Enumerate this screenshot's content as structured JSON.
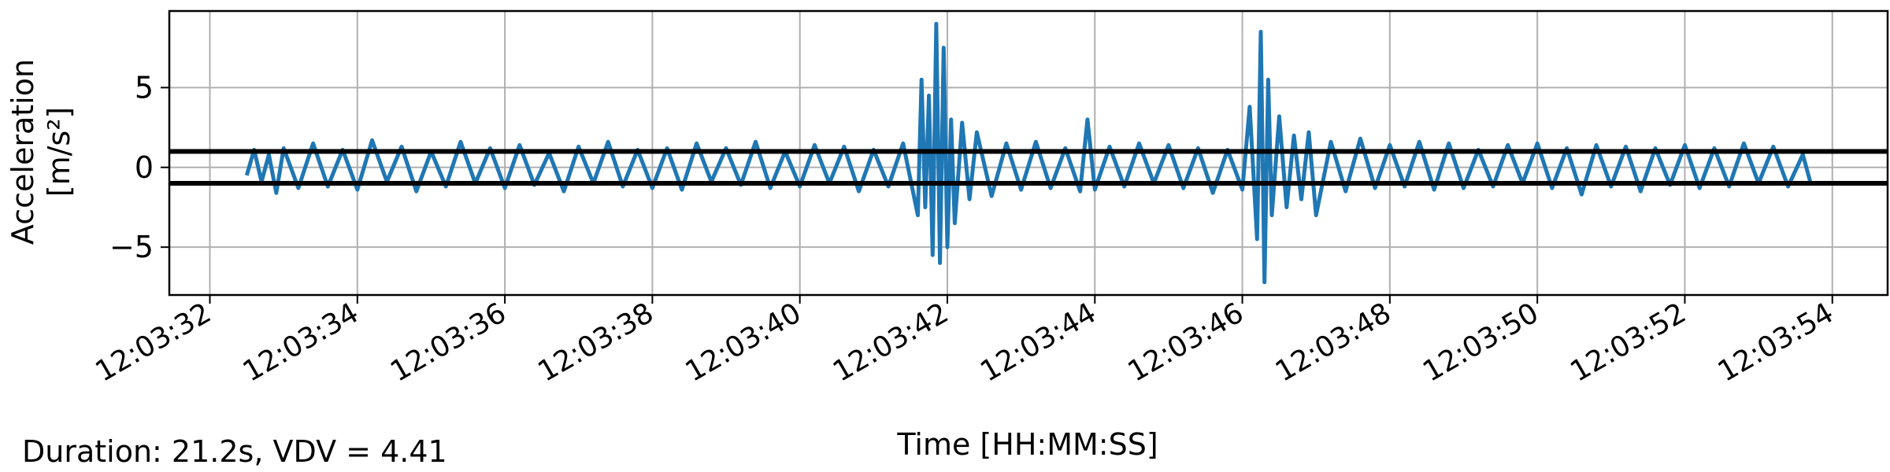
{
  "chart_data": {
    "type": "line",
    "xlabel": "Time [HH:MM:SS]",
    "ylabel_line1": "Acceleration",
    "ylabel_line2": "[m/s²]",
    "x_tick_labels": [
      "12:03:32",
      "12:03:34",
      "12:03:36",
      "12:03:38",
      "12:03:40",
      "12:03:42",
      "12:03:44",
      "12:03:46",
      "12:03:48",
      "12:03:50",
      "12:03:52",
      "12:03:54"
    ],
    "x_tick_seconds": [
      32,
      34,
      36,
      38,
      40,
      42,
      44,
      46,
      48,
      50,
      52,
      54
    ],
    "xlim_seconds": [
      31.45,
      54.75
    ],
    "y_ticks": [
      -5,
      0,
      5
    ],
    "y_tick_labels": [
      "−5",
      "0",
      "5"
    ],
    "ylim": [
      -8,
      9.8
    ],
    "grid": true,
    "threshold_lines": [
      1.0,
      -1.0
    ],
    "series": [
      {
        "color": "#1f77b4",
        "x_seconds": [
          32.5,
          32.6,
          32.7,
          32.8,
          32.9,
          33.0,
          33.2,
          33.4,
          33.6,
          33.8,
          34.0,
          34.2,
          34.4,
          34.6,
          34.8,
          35.0,
          35.2,
          35.4,
          35.6,
          35.8,
          36.0,
          36.2,
          36.4,
          36.6,
          36.8,
          37.0,
          37.2,
          37.4,
          37.6,
          37.8,
          38.0,
          38.2,
          38.4,
          38.6,
          38.8,
          39.0,
          39.2,
          39.4,
          39.6,
          39.8,
          40.0,
          40.2,
          40.4,
          40.6,
          40.8,
          41.0,
          41.2,
          41.4,
          41.6,
          41.65,
          41.7,
          41.75,
          41.8,
          41.85,
          41.9,
          41.95,
          42.0,
          42.05,
          42.1,
          42.2,
          42.3,
          42.4,
          42.6,
          42.8,
          43.0,
          43.2,
          43.4,
          43.6,
          43.8,
          43.9,
          44.0,
          44.2,
          44.4,
          44.6,
          44.8,
          45.0,
          45.2,
          45.4,
          45.6,
          45.8,
          46.0,
          46.1,
          46.2,
          46.25,
          46.3,
          46.35,
          46.4,
          46.5,
          46.6,
          46.7,
          46.8,
          46.9,
          47.0,
          47.2,
          47.4,
          47.6,
          47.8,
          48.0,
          48.2,
          48.4,
          48.6,
          48.8,
          49.0,
          49.2,
          49.4,
          49.6,
          49.8,
          50.0,
          50.2,
          50.4,
          50.6,
          50.8,
          51.0,
          51.2,
          51.4,
          51.6,
          51.8,
          52.0,
          52.2,
          52.4,
          52.6,
          52.8,
          53.0,
          53.2,
          53.4,
          53.6,
          53.7
        ],
        "values": [
          -0.5,
          1.1,
          -0.9,
          0.8,
          -1.6,
          1.2,
          -1.3,
          1.5,
          -1.2,
          1.1,
          -1.4,
          1.7,
          -0.9,
          1.3,
          -1.5,
          1.0,
          -1.2,
          1.6,
          -1.0,
          1.2,
          -1.3,
          1.4,
          -1.1,
          0.9,
          -1.5,
          1.3,
          -1.0,
          1.6,
          -1.2,
          1.1,
          -1.3,
          1.2,
          -1.4,
          1.5,
          -0.9,
          1.2,
          -1.1,
          1.6,
          -1.3,
          1.0,
          -1.2,
          1.4,
          -1.0,
          1.3,
          -1.5,
          1.1,
          -1.2,
          1.5,
          -3.0,
          5.5,
          -2.5,
          4.5,
          -5.5,
          9.0,
          -6.0,
          7.5,
          -5.0,
          3.0,
          -3.5,
          2.8,
          -2.0,
          2.2,
          -1.8,
          1.5,
          -1.4,
          1.6,
          -1.3,
          1.2,
          -1.5,
          3.0,
          -1.4,
          1.3,
          -1.2,
          1.5,
          -1.0,
          1.4,
          -1.3,
          1.2,
          -1.6,
          1.1,
          -1.4,
          3.8,
          -4.5,
          8.5,
          -7.2,
          5.5,
          -3.0,
          3.2,
          -2.5,
          2.0,
          -2.0,
          2.2,
          -3.0,
          1.6,
          -1.5,
          1.8,
          -1.3,
          1.4,
          -1.2,
          1.6,
          -1.4,
          1.5,
          -1.3,
          1.1,
          -1.2,
          1.4,
          -1.0,
          1.5,
          -1.3,
          1.2,
          -1.7,
          1.4,
          -1.2,
          1.3,
          -1.5,
          1.2,
          -1.1,
          1.4,
          -1.3,
          1.2,
          -1.2,
          1.5,
          -1.0,
          1.3,
          -1.2,
          0.8,
          -0.9
        ]
      }
    ]
  },
  "footer": {
    "summary": "Duration: 21.2s, VDV = 4.41"
  }
}
